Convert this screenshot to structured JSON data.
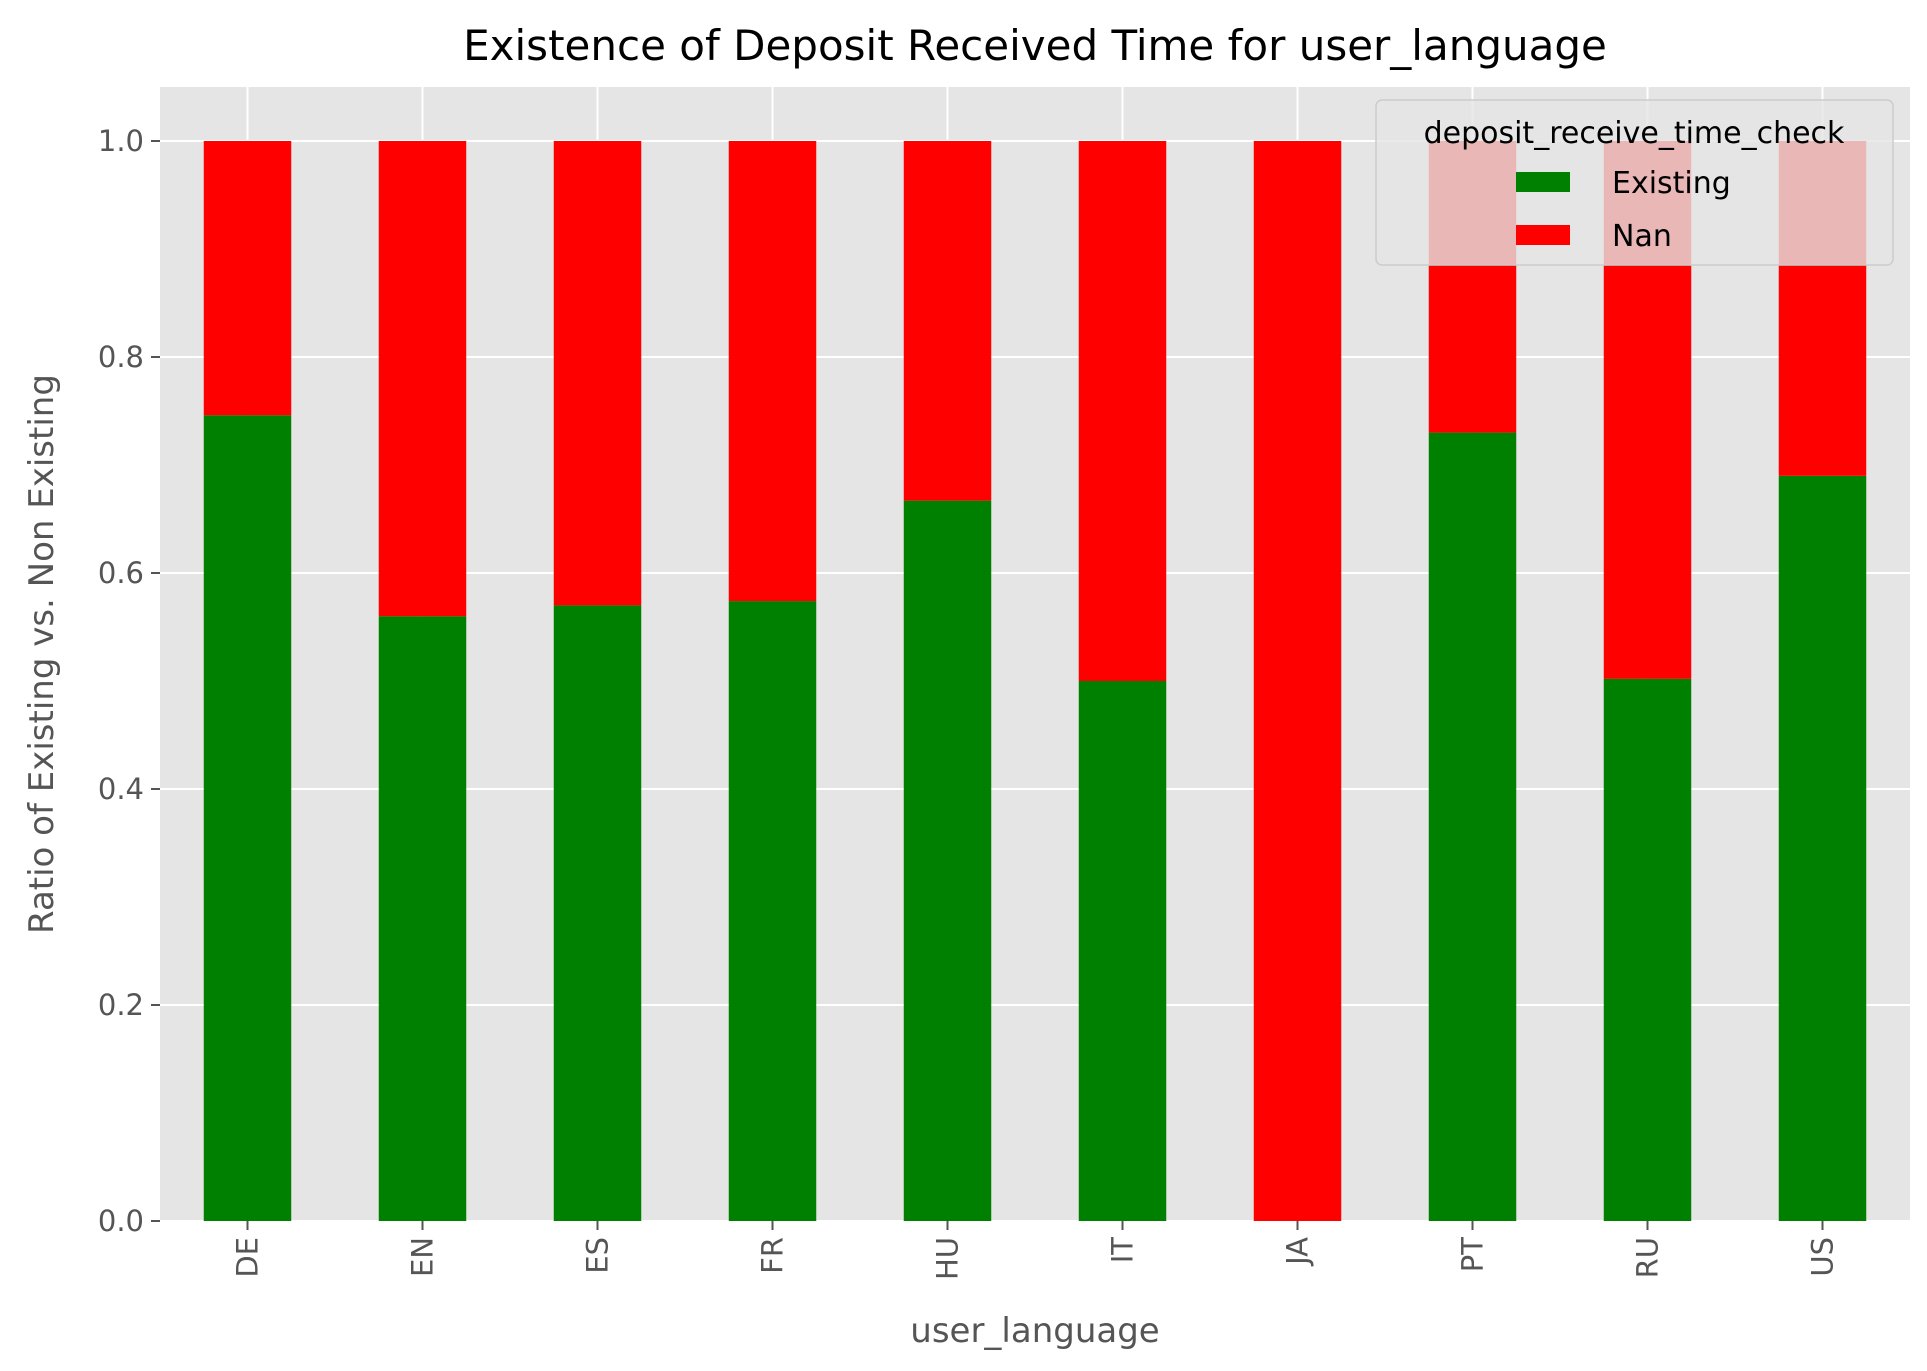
{
  "chart_data": {
    "type": "bar",
    "stacked": true,
    "title": "Existence of Deposit Received Time for user_language",
    "xlabel": "user_language",
    "ylabel": "Ratio of Existing vs. Non Existing",
    "categories": [
      "DE",
      "EN",
      "ES",
      "FR",
      "HU",
      "IT",
      "JA",
      "PT",
      "RU",
      "US"
    ],
    "series": [
      {
        "name": "Existing",
        "color": "#008000",
        "values": [
          0.746,
          0.56,
          0.57,
          0.574,
          0.667,
          0.5,
          0.0,
          0.73,
          0.502,
          0.69
        ]
      },
      {
        "name": "Nan",
        "color": "#ff0000",
        "values": [
          0.254,
          0.44,
          0.43,
          0.426,
          0.333,
          0.5,
          1.0,
          0.27,
          0.498,
          0.31
        ]
      }
    ],
    "ylim": [
      0,
      1.05
    ],
    "yticks": [
      "0.0",
      "0.2",
      "0.4",
      "0.6",
      "0.8",
      "1.0"
    ],
    "grid": true,
    "legend": {
      "title": "deposit_receive_time_check",
      "placement": "top-right"
    }
  }
}
